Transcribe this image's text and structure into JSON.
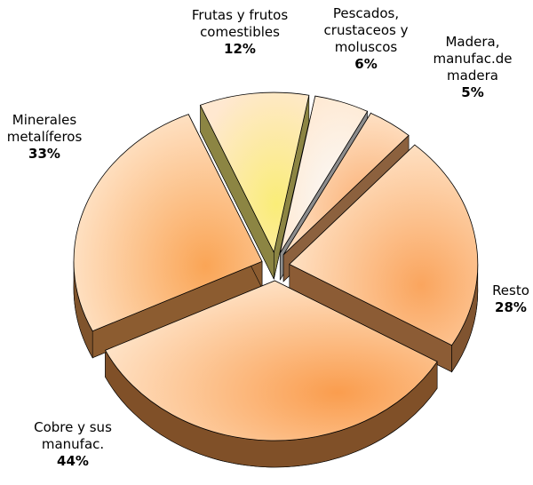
{
  "chart_data": {
    "type": "pie",
    "categories": [
      "Frutas y frutos comestibles",
      "Pescados, crustaceos y moluscos",
      "Madera, manufac.de madera",
      "Resto",
      "Cobre y sus manufac.",
      "Minerales metalíferos"
    ],
    "values": [
      12,
      6,
      5,
      28,
      44,
      33
    ],
    "value_labels": [
      "12%",
      "6%",
      "5%",
      "28%",
      "44%",
      "33%"
    ],
    "colors": [
      "#fff27a",
      "#ffffff",
      "#ffb070",
      "#ffa860",
      "#ffa050",
      "#ffa858"
    ]
  }
}
